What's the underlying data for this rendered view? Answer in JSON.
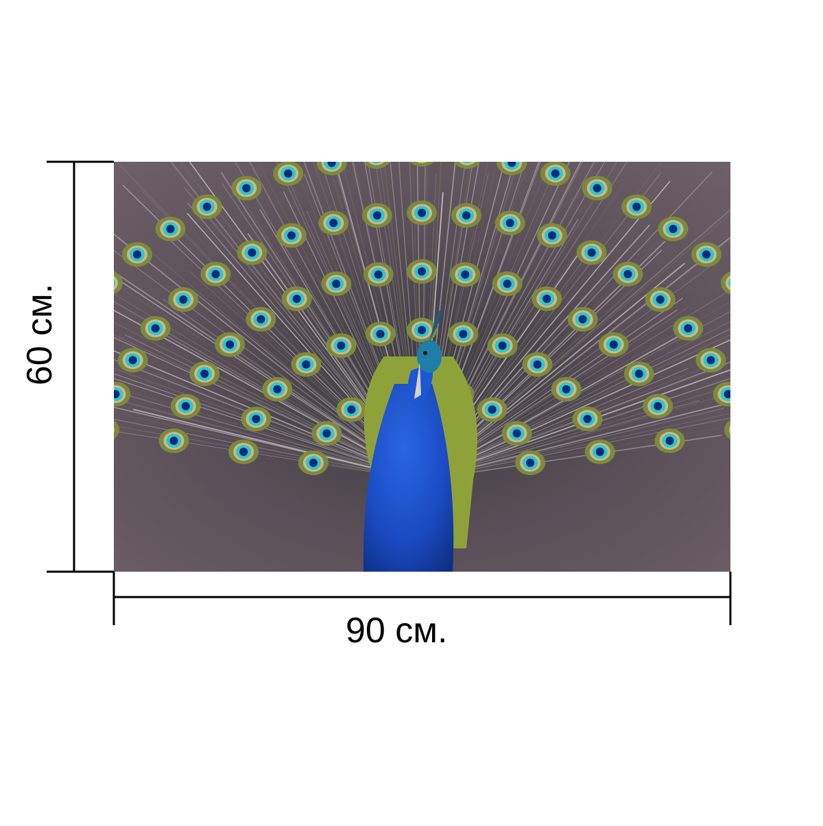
{
  "product": {
    "width_label": "90 см.",
    "height_label": "60 см.",
    "image_subject": "peacock-icon"
  },
  "colors": {
    "background": "#ffffff",
    "line": "#000000",
    "peacock_body": "#1f4fc8",
    "peacock_neck_green": "#8fa23a",
    "eye_teal": "#2fc6c9",
    "eye_blue": "#0b2a7a",
    "feather_base": "#4b4348",
    "feather_light": "#c9c2c8"
  }
}
